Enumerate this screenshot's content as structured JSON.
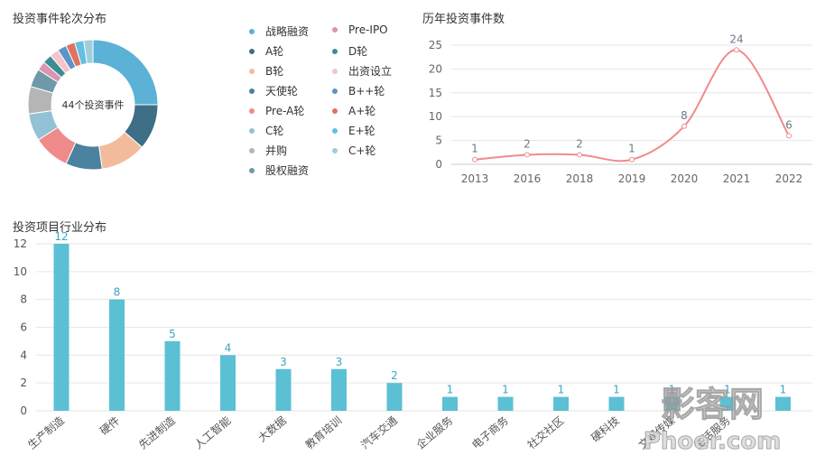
{
  "chart_data": [
    {
      "type": "pie",
      "title": "投资事件轮次分布",
      "center_label": "44个投资事件",
      "slices": [
        {
          "name": "战略融资",
          "value": 11,
          "color": "#5bb1d6"
        },
        {
          "name": "A轮",
          "value": 5,
          "color": "#3e6f86"
        },
        {
          "name": "B轮",
          "value": 5,
          "color": "#f2bc9c"
        },
        {
          "name": "天使轮",
          "value": 4,
          "color": "#4b82a0"
        },
        {
          "name": "Pre-A轮",
          "value": 4,
          "color": "#f08b8b"
        },
        {
          "name": "C轮",
          "value": 3,
          "color": "#93c1d6"
        },
        {
          "name": "并购",
          "value": 3,
          "color": "#b5b5b5"
        },
        {
          "name": "股权融资",
          "value": 2,
          "color": "#6e99a8"
        },
        {
          "name": "Pre-IPO",
          "value": 1,
          "color": "#d995b2"
        },
        {
          "name": "D轮",
          "value": 1,
          "color": "#3c8d93"
        },
        {
          "name": "出资设立",
          "value": 1,
          "color": "#f5c3c8"
        },
        {
          "name": "B++轮",
          "value": 1,
          "color": "#5d94c7"
        },
        {
          "name": "A+轮",
          "value": 1,
          "color": "#e0735f"
        },
        {
          "name": "E+轮",
          "value": 1,
          "color": "#64bfe0"
        },
        {
          "name": "C+轮",
          "value": 1,
          "color": "#9ccfd9"
        }
      ]
    },
    {
      "type": "line",
      "title": "历年投资事件数",
      "x": [
        "2013",
        "2016",
        "2018",
        "2019",
        "2020",
        "2021",
        "2022"
      ],
      "values": [
        1,
        2,
        2,
        1,
        8,
        24,
        6
      ],
      "ylim": [
        0,
        25
      ],
      "yticks": [
        0,
        5,
        10,
        15,
        20,
        25
      ],
      "color": "#f08b8b",
      "grid": true
    },
    {
      "type": "bar",
      "title": "投资项目行业分布",
      "categories": [
        "生产制造",
        "硬件",
        "先进制造",
        "人工智能",
        "大数据",
        "教育培训",
        "汽车交通",
        "企业服务",
        "电子商务",
        "社交社区",
        "硬科技",
        "文娱传媒",
        "生活服务",
        ""
      ],
      "values": [
        12,
        8,
        5,
        4,
        3,
        3,
        2,
        1,
        1,
        1,
        1,
        1,
        1,
        1
      ],
      "ylim": [
        0,
        12
      ],
      "yticks": [
        0,
        2,
        4,
        6,
        8,
        10,
        12
      ],
      "color": "#5bc0d4",
      "grid": true
    }
  ],
  "watermark": {
    "line1": "影客网",
    "line2": "Phoer.com"
  }
}
